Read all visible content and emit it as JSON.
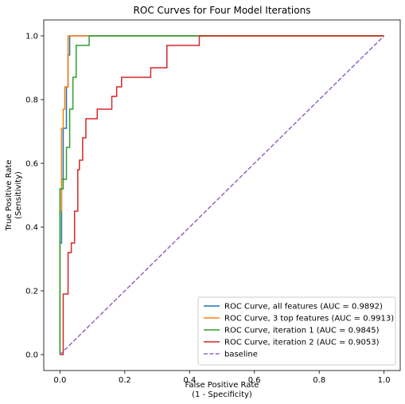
{
  "chart_data": {
    "type": "line",
    "title": "ROC Curves for Four Model Iterations",
    "xlabel_line1": "False Positive Rate",
    "xlabel_line2": "(1 - Specificity)",
    "ylabel_line1": "True Positive Rate",
    "ylabel_line2": "(Sensitivity)",
    "xlim": [
      -0.05,
      1.05
    ],
    "ylim": [
      -0.05,
      1.05
    ],
    "xticks": [
      0.0,
      0.2,
      0.4,
      0.6,
      0.8,
      1.0
    ],
    "yticks": [
      0.0,
      0.2,
      0.4,
      0.6,
      0.8,
      1.0
    ],
    "xtick_labels": [
      "0.0",
      "0.2",
      "0.4",
      "0.6",
      "0.8",
      "1.0"
    ],
    "ytick_labels": [
      "0.0",
      "0.2",
      "0.4",
      "0.6",
      "0.8",
      "1.0"
    ],
    "grid": false,
    "legend_position": "bottom-right",
    "series": [
      {
        "name": "ROC Curve, all features (AUC = 0.9892)",
        "color": "#1f77b4",
        "dashed": false,
        "x": [
          0.0,
          0.0,
          0.005,
          0.005,
          0.01,
          0.01,
          0.02,
          0.02,
          0.025,
          0.025,
          0.03,
          0.03,
          0.04,
          0.04,
          1.0
        ],
        "y": [
          0.0,
          0.35,
          0.35,
          0.55,
          0.55,
          0.71,
          0.71,
          0.84,
          0.84,
          0.94,
          0.94,
          1.0,
          1.0,
          1.0,
          1.0
        ]
      },
      {
        "name": "ROC Curve, 3 top features (AUC = 0.9913)",
        "color": "#ff7f0e",
        "dashed": false,
        "x": [
          0.0,
          0.0,
          0.005,
          0.005,
          0.01,
          0.01,
          0.015,
          0.015,
          0.02,
          0.02,
          0.025,
          0.025,
          0.08,
          1.0
        ],
        "y": [
          0.0,
          0.45,
          0.45,
          0.71,
          0.71,
          0.77,
          0.77,
          0.84,
          0.84,
          0.84,
          0.84,
          1.0,
          1.0,
          1.0
        ]
      },
      {
        "name": "ROC Curve, iteration 1 (AUC = 0.9845)",
        "color": "#2ca02c",
        "dashed": false,
        "x": [
          0.0,
          0.0,
          0.01,
          0.01,
          0.02,
          0.02,
          0.03,
          0.03,
          0.04,
          0.04,
          0.05,
          0.05,
          0.08,
          0.08,
          0.09,
          0.09,
          0.43,
          1.0
        ],
        "y": [
          0.0,
          0.52,
          0.52,
          0.55,
          0.55,
          0.65,
          0.65,
          0.77,
          0.77,
          0.87,
          0.87,
          0.97,
          0.97,
          0.97,
          0.97,
          1.0,
          1.0,
          1.0
        ]
      },
      {
        "name": "ROC Curve, iteration 2 (AUC = 0.9053)",
        "color": "#d62728",
        "dashed": false,
        "x": [
          0.0,
          0.0,
          0.01,
          0.01,
          0.025,
          0.025,
          0.035,
          0.035,
          0.045,
          0.045,
          0.055,
          0.055,
          0.06,
          0.06,
          0.07,
          0.07,
          0.08,
          0.08,
          0.095,
          0.095,
          0.115,
          0.115,
          0.16,
          0.16,
          0.175,
          0.175,
          0.19,
          0.19,
          0.28,
          0.28,
          0.33,
          0.33,
          0.43,
          0.43,
          1.0
        ],
        "y": [
          0.0,
          0.0,
          0.0,
          0.19,
          0.19,
          0.32,
          0.32,
          0.35,
          0.35,
          0.45,
          0.45,
          0.58,
          0.58,
          0.61,
          0.61,
          0.68,
          0.68,
          0.74,
          0.74,
          0.74,
          0.74,
          0.77,
          0.77,
          0.81,
          0.81,
          0.84,
          0.84,
          0.87,
          0.87,
          0.9,
          0.9,
          0.97,
          0.97,
          1.0,
          1.0
        ]
      },
      {
        "name": "baseline",
        "color": "#9467bd",
        "dashed": true,
        "x": [
          0.0,
          1.0
        ],
        "y": [
          0.0,
          1.0
        ]
      }
    ]
  }
}
